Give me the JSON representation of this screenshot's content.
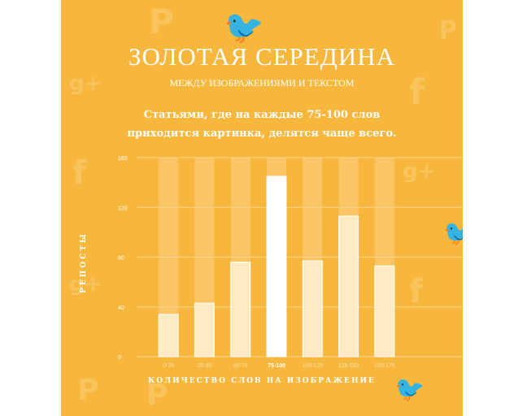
{
  "title": "ЗОЛОТАЯ СЕРЕДИНА",
  "subtitle": "МЕЖДУ ИЗОБРАЖЕНИЯМИ И ТЕКСТОМ",
  "headline": [
    "Статьями, где на каждые 75-100 слов",
    "приходится картинка, делятся чаще всего."
  ],
  "colors": {
    "background": "#f6b73c",
    "bar_track": "#f9c565",
    "bar": "#fdebc4",
    "bar_highlight": "#ffffff",
    "text": "#ffffff"
  },
  "background_icons": [
    "pinterest-icon",
    "twitter-icon",
    "google-plus-icon",
    "facebook-icon"
  ],
  "chart_data": {
    "type": "bar",
    "xlabel": "КОЛИЧЕСТВО СЛОВ НА ИЗОБРАЖЕНИЕ",
    "ylabel": "РЕПОСТЫ",
    "categories": [
      "0-25",
      "25-50",
      "50-75",
      "75-100",
      "100-125",
      "125-150",
      "150-175"
    ],
    "values": [
      34,
      43,
      76,
      145,
      77,
      113,
      73
    ],
    "highlight_index": 3,
    "ylim": [
      0,
      160
    ],
    "yticks": [
      0,
      40,
      80,
      120,
      160
    ],
    "grid": true,
    "legend": "none"
  }
}
